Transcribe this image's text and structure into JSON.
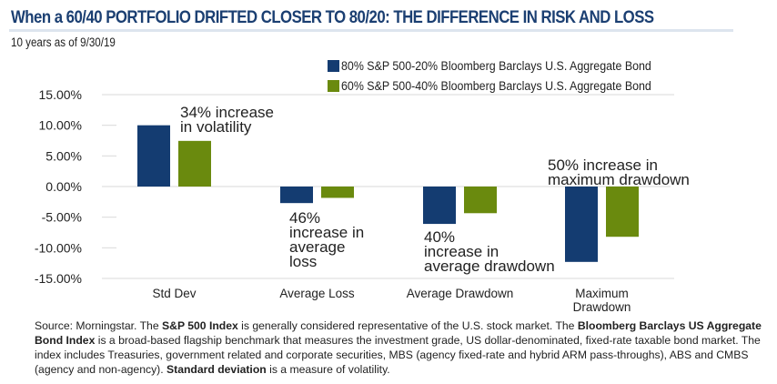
{
  "header": {
    "title": "When a 60/40 PORTFOLIO DRIFTED CLOSER TO 80/20: THE DIFFERENCE IN RISK AND LOSS",
    "subtitle": "10 years as of 9/30/19"
  },
  "colors": {
    "series_80_20": "#143c71",
    "series_60_40": "#6a8a0e",
    "title": "#1b3f72",
    "grid": "#d9d9d9"
  },
  "chart_data": {
    "type": "bar",
    "title": "When a 60/40 PORTFOLIO DRIFTED CLOSER TO 80/20: THE DIFFERENCE IN RISK AND LOSS",
    "subtitle": "10 years as of 9/30/19",
    "categories": [
      "Std Dev",
      "Average Loss",
      "Average Drawdown",
      "Maximum Drawdown"
    ],
    "category_lines": [
      [
        "Std Dev"
      ],
      [
        "Average Loss"
      ],
      [
        "Average Drawdown"
      ],
      [
        "Maximum",
        "Drawdown"
      ]
    ],
    "series": [
      {
        "name": "80% S&P 500-20% Bloomberg Barclays U.S. Aggregate Bond",
        "color": "#143c71",
        "values": [
          10.0,
          -2.7,
          -6.1,
          -12.3
        ]
      },
      {
        "name": "60% S&P 500-40% Bloomberg Barclays U.S. Aggregate Bond",
        "color": "#6a8a0e",
        "values": [
          7.45,
          -1.85,
          -4.35,
          -8.2
        ]
      }
    ],
    "xlabel": "",
    "ylabel": "",
    "ylim": [
      -15,
      15
    ],
    "yticks": [
      15,
      10,
      5,
      0,
      -5,
      -10,
      -15
    ],
    "ytick_labels": [
      "15.00%",
      "10.00%",
      "5.00%",
      "0.00%",
      "-5.00%",
      "-10.00%",
      "-15.00%"
    ],
    "grid": false,
    "legend_position": "top-right",
    "annotations": [
      {
        "category": "Std Dev",
        "lines": [
          "34% increase",
          "in volatility"
        ]
      },
      {
        "category": "Average Loss",
        "lines": [
          "46%",
          "increase in",
          "average",
          "loss"
        ]
      },
      {
        "category": "Average Drawdown",
        "lines": [
          "40%",
          "increase in",
          "average drawdown"
        ]
      },
      {
        "category": "Maximum Drawdown",
        "lines": [
          "50% increase in",
          "maximum drawdown"
        ]
      }
    ]
  },
  "legend": [
    {
      "label": "80% S&P 500-20% Bloomberg Barclays U.S. Aggregate Bond",
      "color": "#143c71"
    },
    {
      "label": "60% S&P 500-40% Bloomberg Barclays U.S. Aggregate Bond",
      "color": "#6a8a0e"
    }
  ],
  "footnote": {
    "segments": [
      {
        "text": "Source: Morningstar. The ",
        "bold": false
      },
      {
        "text": "S&P 500 Index",
        "bold": true
      },
      {
        "text": " is generally considered representative of the U.S. stock market. The ",
        "bold": false
      },
      {
        "text": "Bloomberg Barclays US Aggregate Bond Index",
        "bold": true
      },
      {
        "text": " is a broad-based flagship benchmark that measures the investment grade, US dollar-denominated, fixed-rate taxable bond market. The index includes Treasuries, government related and corporate securities, MBS (agency fixed-rate and hybrid ARM pass-throughs), ABS and CMBS (agency and non-agency). ",
        "bold": false
      },
      {
        "text": "Standard deviation",
        "bold": true
      },
      {
        "text": " is a measure of volatility.",
        "bold": false
      }
    ]
  }
}
